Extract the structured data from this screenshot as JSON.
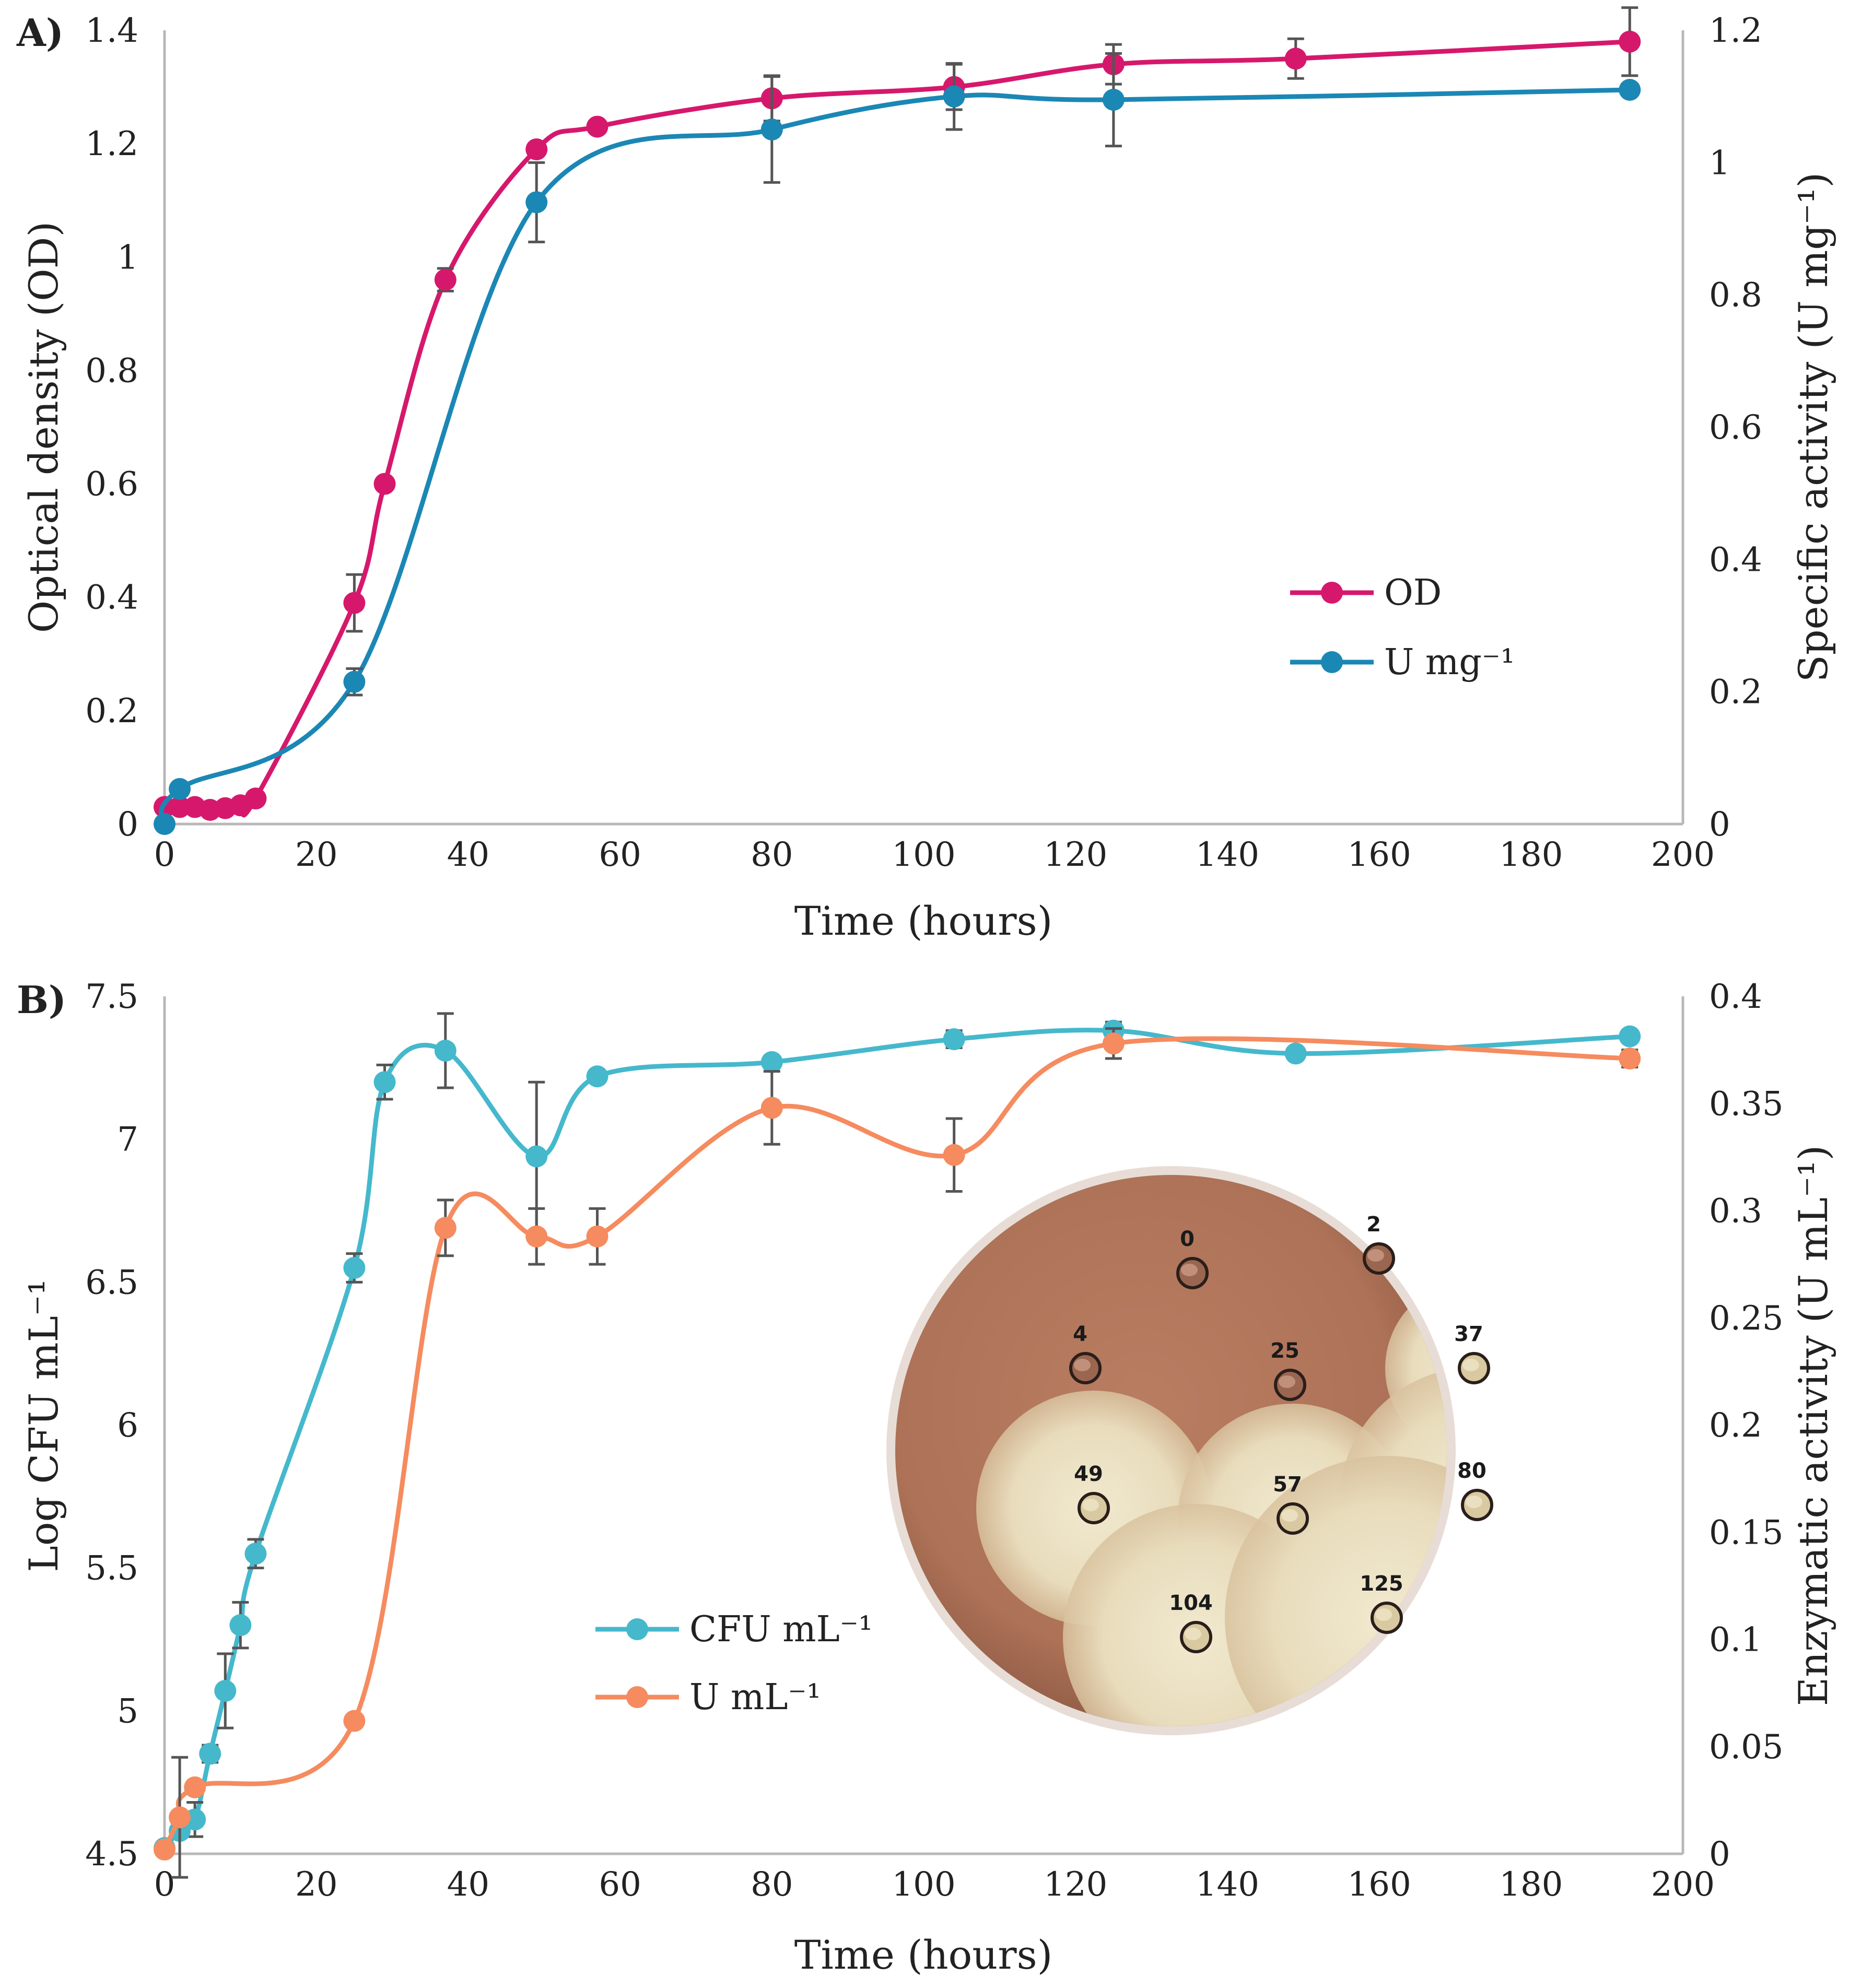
{
  "chart_data": [
    {
      "type": "line",
      "panel_label": "A)",
      "xlabel": "Time (hours)",
      "ylabel": "Optical density (OD)",
      "y2label": "Specific activity (U mg⁻¹)",
      "xlim": [
        0,
        200
      ],
      "ylim": [
        0,
        1.4
      ],
      "y2lim": [
        0,
        1.2
      ],
      "x_ticks": [
        "0",
        "20",
        "40",
        "60",
        "80",
        "100",
        "120",
        "140",
        "160",
        "180",
        "200"
      ],
      "y_ticks": [
        "0",
        "0.2",
        "0.4",
        "0.6",
        "0.8",
        "1",
        "1.2",
        "1.4"
      ],
      "y2_ticks": [
        "0",
        "0.2",
        "0.4",
        "0.6",
        "0.8",
        "1",
        "1.2"
      ],
      "legend_position": "middle-right",
      "series": [
        {
          "name": "OD",
          "axis": "left",
          "color": "#d6186c",
          "x": [
            0,
            2,
            4,
            6,
            8,
            10,
            12,
            25,
            29,
            37,
            49,
            57,
            80,
            104,
            125,
            149,
            193
          ],
          "y": [
            0.03,
            0.03,
            0.03,
            0.025,
            0.028,
            0.033,
            0.045,
            0.39,
            0.6,
            0.96,
            1.19,
            1.23,
            1.28,
            1.3,
            1.34,
            1.35,
            1.38
          ],
          "err": [
            0,
            0,
            0,
            0,
            0,
            0,
            0,
            0.05,
            0.01,
            0.02,
            0.01,
            0.01,
            0.04,
            0.04,
            0.035,
            0.035,
            0.06
          ]
        },
        {
          "name": "U mg⁻¹",
          "axis": "right",
          "color": "#1b87b5",
          "x": [
            0,
            2,
            25,
            49,
            80,
            104,
            125,
            193
          ],
          "y": [
            0.0,
            0.053,
            0.215,
            0.94,
            1.05,
            1.1,
            1.095,
            1.11
          ],
          "err": [
            0,
            0,
            0.02,
            0.06,
            0.08,
            0.05,
            0.07,
            0
          ]
        }
      ]
    },
    {
      "type": "line",
      "panel_label": "B)",
      "xlabel": "Time (hours)",
      "ylabel": "Log CFU mL⁻¹",
      "y2label": "Enzymatic activity (U mL⁻¹)",
      "xlim": [
        0,
        200
      ],
      "ylim": [
        4.5,
        7.5
      ],
      "y2lim": [
        0,
        0.4
      ],
      "x_ticks": [
        "0",
        "20",
        "40",
        "60",
        "80",
        "100",
        "120",
        "140",
        "160",
        "180",
        "200"
      ],
      "y_ticks": [
        "4.5",
        "5",
        "5.5",
        "6",
        "6.5",
        "7",
        "7.5"
      ],
      "y2_ticks": [
        "0",
        "0.05",
        "0.1",
        "0.15",
        "0.2",
        "0.25",
        "0.3",
        "0.35",
        "0.4"
      ],
      "legend_position": "lower-middle",
      "series": [
        {
          "name": "CFU mL⁻¹",
          "axis": "left",
          "color": "#45b8cc",
          "x": [
            0,
            2,
            4,
            6,
            8,
            10,
            12,
            25,
            29,
            37,
            49,
            57,
            80,
            104,
            125,
            149,
            193
          ],
          "y": [
            4.52,
            4.58,
            4.62,
            4.85,
            5.07,
            5.3,
            5.55,
            6.55,
            7.2,
            7.31,
            6.94,
            7.22,
            7.27,
            7.35,
            7.38,
            7.3,
            7.36
          ],
          "err": [
            0,
            0,
            0.06,
            0.03,
            0.13,
            0.08,
            0.05,
            0.05,
            0.06,
            0.13,
            0.26,
            0,
            0,
            0.03,
            0.03,
            0,
            0
          ]
        },
        {
          "name": "U mL⁻¹",
          "axis": "right",
          "color": "#f58b5f",
          "x": [
            0,
            2,
            4,
            25,
            37,
            49,
            57,
            80,
            104,
            125,
            193
          ],
          "y": [
            0.002,
            0.017,
            0.031,
            0.062,
            0.292,
            0.288,
            0.288,
            0.348,
            0.326,
            0.378,
            0.371
          ],
          "err": [
            0,
            0.028,
            0,
            0,
            0.013,
            0.013,
            0.013,
            0.017,
            0.017,
            0.007,
            0.004
          ]
        }
      ]
    }
  ],
  "inset": {
    "description_labels": [
      "0",
      "2",
      "4",
      "25",
      "37",
      "49",
      "57",
      "80",
      "104",
      "125"
    ]
  },
  "colors": {
    "axis": "#b8b8b8",
    "errorbar": "#555555",
    "plate_medium": "#b3795e",
    "plate_halo": "#ebe1c4"
  }
}
